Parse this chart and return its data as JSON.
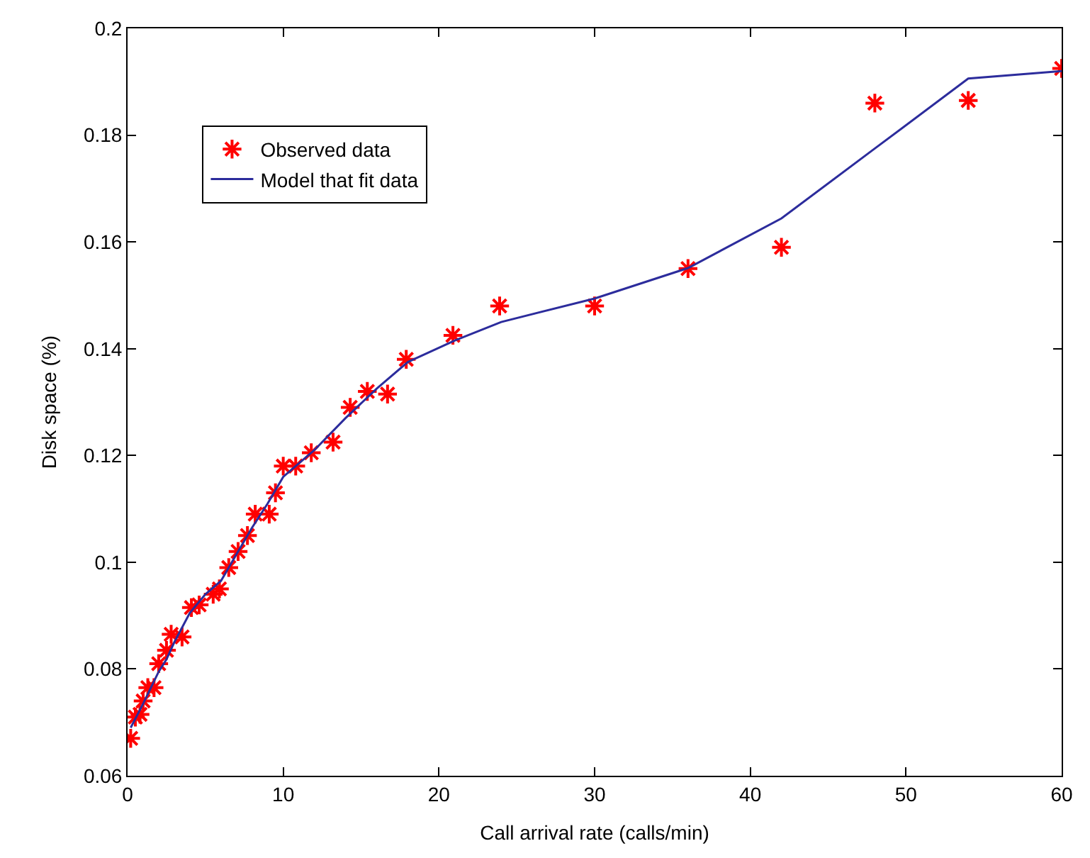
{
  "chart_data": {
    "type": "scatter",
    "xlabel": "Call arrival rate (calls/min)",
    "ylabel": "Disk space (%)",
    "xlim": [
      0,
      60
    ],
    "xticks": [
      0,
      10,
      20,
      30,
      40,
      50,
      60
    ],
    "ylim": [
      0.06,
      0.2
    ],
    "yticks": [
      0.06,
      0.08,
      0.1,
      0.12,
      0.14,
      0.16,
      0.18,
      0.2
    ],
    "legend": "top left",
    "series": [
      {
        "name": "Observed data",
        "marker": "cross",
        "color": "#ff0000",
        "x": [
          0.2,
          0.5,
          0.8,
          1.0,
          1.3,
          1.7,
          2.0,
          2.5,
          2.8,
          3.5,
          4.1,
          4.6,
          5.5,
          5.9,
          6.5,
          7.1,
          7.7,
          8.2,
          9.1,
          9.5,
          10.0,
          10.8,
          11.8,
          13.2,
          14.3,
          15.4,
          16.7,
          17.9,
          20.9,
          23.9,
          30.0,
          36.0,
          42.0,
          48.0,
          54.0,
          60.0
        ],
        "values": [
          0.067,
          0.071,
          0.0715,
          0.074,
          0.0765,
          0.0765,
          0.081,
          0.0835,
          0.0865,
          0.086,
          0.0915,
          0.092,
          0.094,
          0.095,
          0.099,
          0.102,
          0.105,
          0.109,
          0.109,
          0.113,
          0.118,
          0.118,
          0.1205,
          0.1225,
          0.129,
          0.132,
          0.1315,
          0.138,
          0.1425,
          0.148,
          0.148,
          0.155,
          0.159,
          0.186,
          0.1865,
          0.1925
        ]
      },
      {
        "name": "Model that fit data",
        "type": "line",
        "marker": "none",
        "line_style": "solid",
        "color": "#2c2c9c",
        "x": [
          0.2,
          1,
          2,
          2.5,
          3,
          4,
          5,
          6,
          7,
          8,
          9,
          10,
          12,
          14,
          16,
          18,
          21,
          24,
          30,
          36,
          42,
          48,
          54,
          60
        ],
        "values": [
          0.069,
          0.0735,
          0.0795,
          0.0818,
          0.085,
          0.0905,
          0.094,
          0.0965,
          0.1015,
          0.1065,
          0.111,
          0.116,
          0.121,
          0.127,
          0.1325,
          0.1375,
          0.1415,
          0.145,
          0.1494,
          0.1551,
          0.1644,
          0.1775,
          0.1906,
          0.192
        ]
      }
    ]
  }
}
